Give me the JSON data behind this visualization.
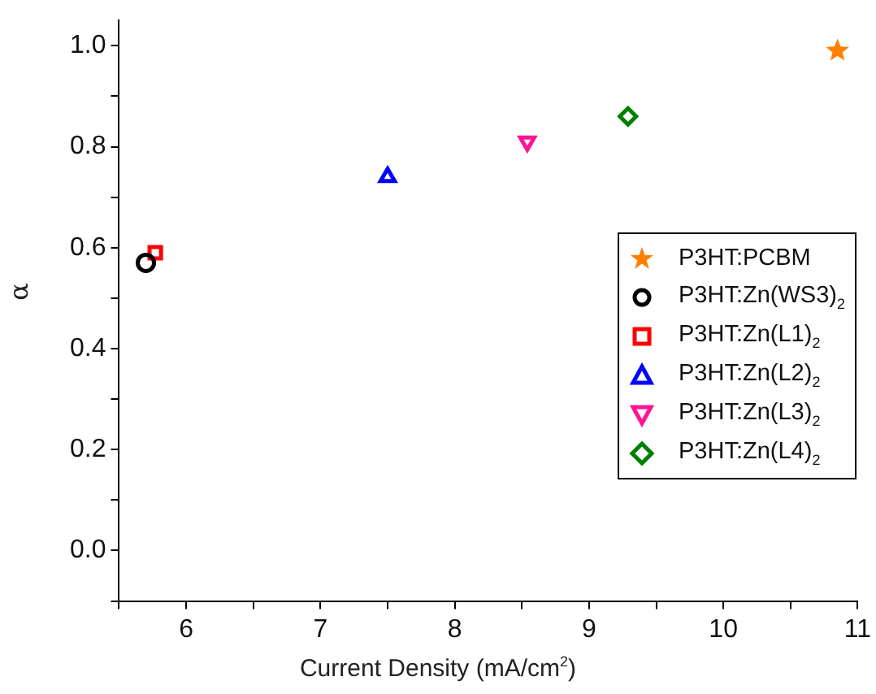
{
  "chart_data": {
    "type": "scatter",
    "xlabel": "Current Density (mA/cm$^{2}$)",
    "ylabel": "α",
    "xlim": [
      5.5,
      11
    ],
    "ylim": [
      -0.1,
      1.05
    ],
    "xticks": [
      {
        "value": 5.5,
        "label": null
      },
      6,
      {
        "value": 6.5,
        "label": null
      },
      7,
      {
        "value": 7.5,
        "label": null
      },
      8,
      {
        "value": 8.5,
        "label": null
      },
      9,
      {
        "value": 9.5,
        "label": null
      },
      10,
      {
        "value": 10.5,
        "label": null
      },
      11
    ],
    "yticks": [
      {
        "value": -0.1,
        "label": null
      },
      {
        "value": 0,
        "label": "0.0"
      },
      {
        "value": 0.1,
        "label": null
      },
      0.2,
      {
        "value": 0.3,
        "label": null
      },
      0.4,
      {
        "value": 0.5,
        "label": null
      },
      0.6,
      {
        "value": 0.7,
        "label": null
      },
      0.8,
      {
        "value": 0.9,
        "label": null
      },
      {
        "value": 1,
        "label": "1.0"
      }
    ],
    "grid": false,
    "legend": "right",
    "series": [
      {
        "name": "P3HT:PCBM",
        "color": "#ff7f00",
        "marker": "star",
        "x": [
          10.85
        ],
        "values": [
          0.99
        ]
      },
      {
        "name": "P3HT:Zn(WS3)$_{2}$",
        "color": "#000000",
        "marker": "circle",
        "x": [
          5.7
        ],
        "values": [
          0.57
        ]
      },
      {
        "name": "P3HT:Zn(L1)$_{2}$",
        "color": "#ff0000",
        "marker": "square",
        "x": [
          5.77
        ],
        "values": [
          0.59
        ]
      },
      {
        "name": "P3HT:Zn(L2)$_{2}$",
        "color": "#0000ff",
        "marker": "triangle",
        "x": [
          7.5
        ],
        "values": [
          0.74
        ]
      },
      {
        "name": "P3HT:Zn(L3)$_{2}$",
        "color": "#ff1493",
        "marker": "triangle-down",
        "x": [
          8.54
        ],
        "values": [
          0.81
        ]
      },
      {
        "name": "P3HT:Zn(L4)$_{2}$",
        "color": "#008000",
        "marker": "diamond",
        "x": [
          9.29
        ],
        "values": [
          0.86
        ]
      }
    ]
  }
}
